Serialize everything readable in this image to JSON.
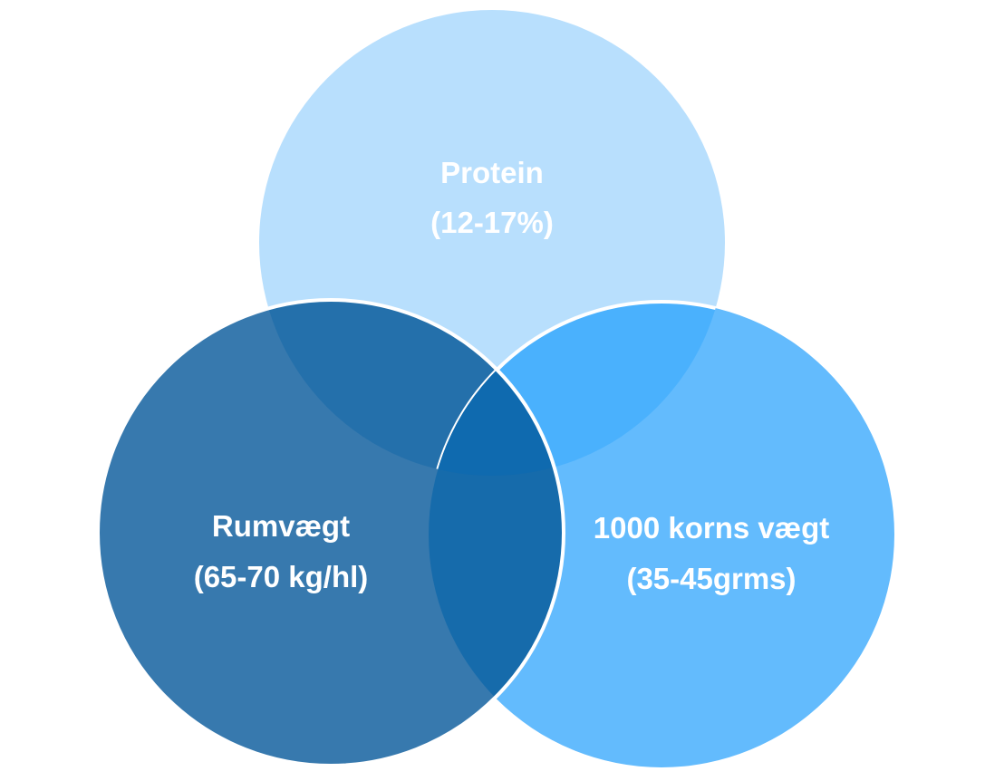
{
  "diagram": {
    "type": "venn",
    "sets": [
      {
        "id": "top",
        "title": "Protein",
        "subtitle": "(12-17%)",
        "color": "#b8dffd"
      },
      {
        "id": "left",
        "title": "Rumvægt",
        "subtitle": "(65-70 kg/hl)",
        "color": "#3779ae"
      },
      {
        "id": "right",
        "title": "1000 korns vægt",
        "subtitle": "(35-45grms)",
        "color": "#63bbfd"
      }
    ],
    "overlap_colors": {
      "top_left": "#2470ab",
      "top_right": "#4ab1fd",
      "left_right": "#166bab",
      "all": "#0f6aaf"
    }
  }
}
